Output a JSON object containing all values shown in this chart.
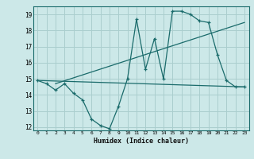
{
  "xlabel": "Humidex (Indice chaleur)",
  "xlim": [
    -0.5,
    23.5
  ],
  "ylim": [
    11.8,
    19.5
  ],
  "yticks": [
    12,
    13,
    14,
    15,
    16,
    17,
    18,
    19
  ],
  "xticks": [
    0,
    1,
    2,
    3,
    4,
    5,
    6,
    7,
    8,
    9,
    10,
    11,
    12,
    13,
    14,
    15,
    16,
    17,
    18,
    19,
    20,
    21,
    22,
    23
  ],
  "bg_color": "#cce8e8",
  "grid_color": "#aacece",
  "line_color": "#1a6b6b",
  "line1_x": [
    0,
    1,
    2,
    3,
    4,
    5,
    6,
    7,
    8,
    9,
    10,
    11,
    12,
    13,
    14,
    15,
    16,
    17,
    18,
    19,
    20,
    21,
    22,
    23
  ],
  "line1_y": [
    14.9,
    14.7,
    14.3,
    14.7,
    14.1,
    13.7,
    12.5,
    12.1,
    11.9,
    13.3,
    15.0,
    18.7,
    15.6,
    17.5,
    15.0,
    19.2,
    19.2,
    19.0,
    18.6,
    18.5,
    16.5,
    14.9,
    14.5,
    14.5
  ],
  "line2_x": [
    0,
    23
  ],
  "line2_y": [
    14.9,
    14.5
  ],
  "line3_x": [
    2,
    23
  ],
  "line3_y": [
    14.7,
    18.5
  ]
}
